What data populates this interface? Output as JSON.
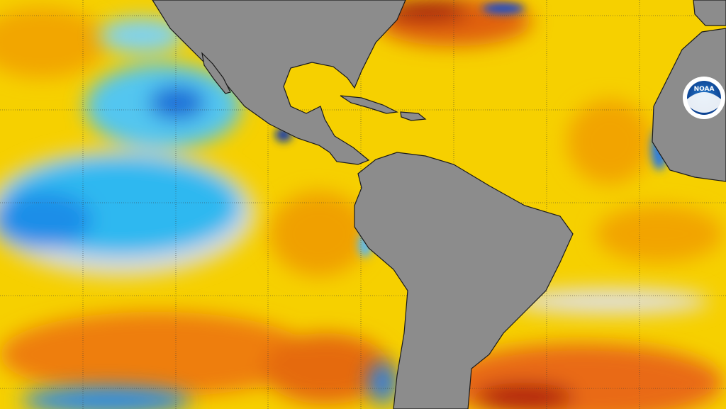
{
  "logo": {
    "text": "NOAA"
  }
}
